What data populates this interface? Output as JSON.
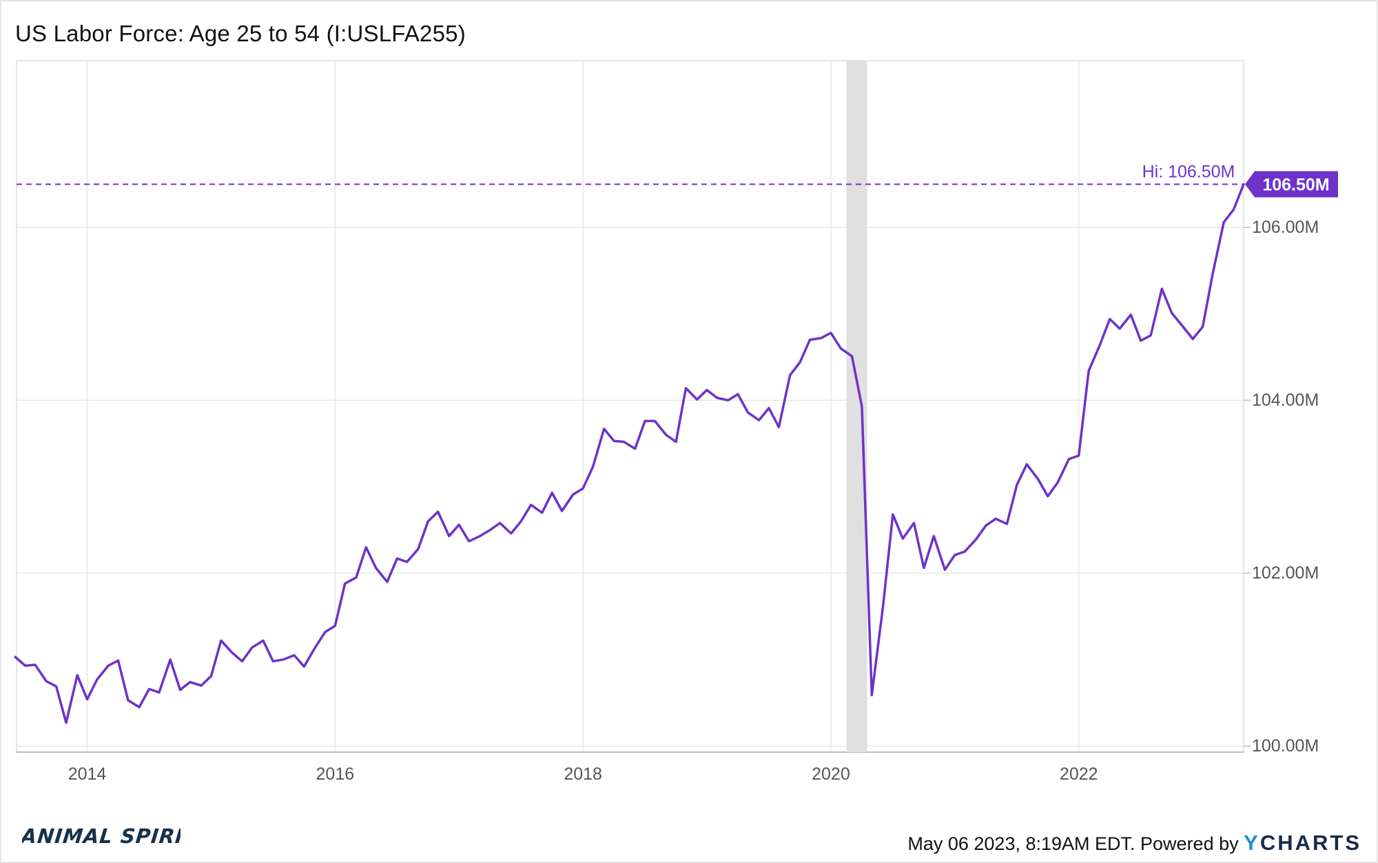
{
  "header": {
    "title": "US Labor Force: Age 25 to 54 (I:USLFA255)"
  },
  "footer": {
    "timestamp": "May 06 2023, 8:19AM EDT. Powered by",
    "brand_y": "Y",
    "brand_rest": "CHARTS"
  },
  "logo": {
    "text": "ANIMAL SPIRITS"
  },
  "chart_data": {
    "type": "line",
    "title": "US Labor Force: Age 25 to 54 (I:USLFA255)",
    "xlabel": "",
    "ylabel": "",
    "xlim": [
      2013.43,
      2023.33
    ],
    "ylim": [
      99.93,
      107.93
    ],
    "x_ticks": [
      {
        "value": 2014,
        "label": "2014"
      },
      {
        "value": 2016,
        "label": "2016"
      },
      {
        "value": 2018,
        "label": "2018"
      },
      {
        "value": 2020,
        "label": "2020"
      },
      {
        "value": 2022,
        "label": "2022"
      }
    ],
    "y_ticks": [
      {
        "value": 100,
        "label": "100.00M"
      },
      {
        "value": 102,
        "label": "102.00M"
      },
      {
        "value": 104,
        "label": "104.00M"
      },
      {
        "value": 106,
        "label": "106.00M"
      }
    ],
    "recession_band": [
      2020.125,
      2020.292
    ],
    "hi_line": {
      "value": 106.5,
      "label": "Hi: 106.50M"
    },
    "last_value_label": "106.50M",
    "colors": {
      "line": "#6e32c9",
      "recession": "#e0e0e0",
      "grid": "#e8e8e8"
    },
    "grid": true,
    "series": [
      {
        "values": [
          [
            2013.42,
            101.03
          ],
          [
            2013.5,
            100.93
          ],
          [
            2013.58,
            100.94
          ],
          [
            2013.67,
            100.75
          ],
          [
            2013.75,
            100.69
          ],
          [
            2013.83,
            100.27
          ],
          [
            2013.92,
            100.82
          ],
          [
            2014.0,
            100.54
          ],
          [
            2014.08,
            100.77
          ],
          [
            2014.17,
            100.93
          ],
          [
            2014.25,
            100.99
          ],
          [
            2014.33,
            100.53
          ],
          [
            2014.42,
            100.45
          ],
          [
            2014.5,
            100.66
          ],
          [
            2014.58,
            100.62
          ],
          [
            2014.67,
            101.0
          ],
          [
            2014.75,
            100.65
          ],
          [
            2014.83,
            100.74
          ],
          [
            2014.92,
            100.7
          ],
          [
            2015.0,
            100.81
          ],
          [
            2015.08,
            101.22
          ],
          [
            2015.17,
            101.08
          ],
          [
            2015.25,
            100.98
          ],
          [
            2015.33,
            101.14
          ],
          [
            2015.42,
            101.22
          ],
          [
            2015.5,
            100.98
          ],
          [
            2015.58,
            101.0
          ],
          [
            2015.67,
            101.05
          ],
          [
            2015.75,
            100.92
          ],
          [
            2015.83,
            101.12
          ],
          [
            2015.92,
            101.32
          ],
          [
            2016.0,
            101.39
          ],
          [
            2016.08,
            101.88
          ],
          [
            2016.17,
            101.95
          ],
          [
            2016.25,
            102.3
          ],
          [
            2016.33,
            102.06
          ],
          [
            2016.42,
            101.9
          ],
          [
            2016.5,
            102.17
          ],
          [
            2016.58,
            102.13
          ],
          [
            2016.67,
            102.28
          ],
          [
            2016.75,
            102.6
          ],
          [
            2016.83,
            102.71
          ],
          [
            2016.92,
            102.43
          ],
          [
            2017.0,
            102.56
          ],
          [
            2017.08,
            102.37
          ],
          [
            2017.17,
            102.43
          ],
          [
            2017.25,
            102.5
          ],
          [
            2017.33,
            102.58
          ],
          [
            2017.42,
            102.46
          ],
          [
            2017.5,
            102.6
          ],
          [
            2017.58,
            102.79
          ],
          [
            2017.67,
            102.7
          ],
          [
            2017.75,
            102.93
          ],
          [
            2017.83,
            102.72
          ],
          [
            2017.92,
            102.91
          ],
          [
            2018.0,
            102.98
          ],
          [
            2018.08,
            103.23
          ],
          [
            2018.17,
            103.67
          ],
          [
            2018.25,
            103.53
          ],
          [
            2018.33,
            103.52
          ],
          [
            2018.42,
            103.44
          ],
          [
            2018.5,
            103.76
          ],
          [
            2018.58,
            103.76
          ],
          [
            2018.67,
            103.6
          ],
          [
            2018.75,
            103.52
          ],
          [
            2018.83,
            104.14
          ],
          [
            2018.92,
            104.01
          ],
          [
            2019.0,
            104.12
          ],
          [
            2019.08,
            104.03
          ],
          [
            2019.17,
            104.0
          ],
          [
            2019.25,
            104.07
          ],
          [
            2019.33,
            103.86
          ],
          [
            2019.42,
            103.77
          ],
          [
            2019.5,
            103.91
          ],
          [
            2019.58,
            103.69
          ],
          [
            2019.67,
            104.29
          ],
          [
            2019.75,
            104.44
          ],
          [
            2019.83,
            104.7
          ],
          [
            2019.92,
            104.72
          ],
          [
            2020.0,
            104.78
          ],
          [
            2020.08,
            104.6
          ],
          [
            2020.17,
            104.51
          ],
          [
            2020.25,
            103.93
          ],
          [
            2020.33,
            100.59
          ],
          [
            2020.42,
            101.61
          ],
          [
            2020.5,
            102.68
          ],
          [
            2020.58,
            102.4
          ],
          [
            2020.67,
            102.58
          ],
          [
            2020.75,
            102.06
          ],
          [
            2020.83,
            102.43
          ],
          [
            2020.92,
            102.04
          ],
          [
            2021.0,
            102.21
          ],
          [
            2021.08,
            102.25
          ],
          [
            2021.17,
            102.39
          ],
          [
            2021.25,
            102.55
          ],
          [
            2021.33,
            102.63
          ],
          [
            2021.42,
            102.57
          ],
          [
            2021.5,
            103.02
          ],
          [
            2021.58,
            103.26
          ],
          [
            2021.67,
            103.09
          ],
          [
            2021.75,
            102.89
          ],
          [
            2021.83,
            103.05
          ],
          [
            2021.92,
            103.32
          ],
          [
            2022.0,
            103.36
          ],
          [
            2022.08,
            104.34
          ],
          [
            2022.17,
            104.64
          ],
          [
            2022.25,
            104.94
          ],
          [
            2022.33,
            104.83
          ],
          [
            2022.42,
            104.99
          ],
          [
            2022.5,
            104.69
          ],
          [
            2022.58,
            104.75
          ],
          [
            2022.67,
            105.29
          ],
          [
            2022.75,
            105.01
          ],
          [
            2022.83,
            104.87
          ],
          [
            2022.92,
            104.71
          ],
          [
            2023.0,
            104.85
          ],
          [
            2023.08,
            105.46
          ],
          [
            2023.17,
            106.06
          ],
          [
            2023.25,
            106.21
          ],
          [
            2023.33,
            106.5
          ]
        ]
      }
    ]
  }
}
